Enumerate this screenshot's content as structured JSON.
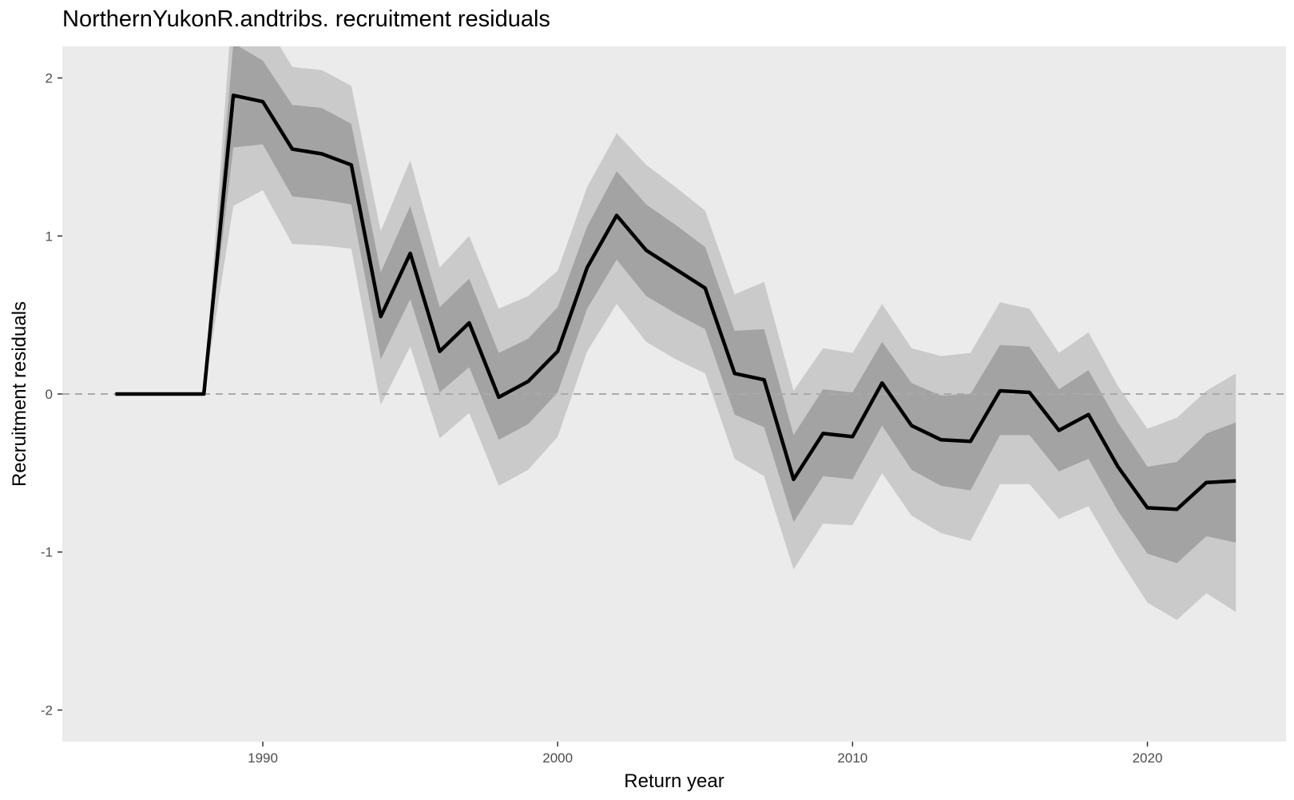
{
  "chart_data": {
    "type": "area",
    "title": "NorthernYukonR.andtribs. recruitment residuals",
    "xlabel": "Return year",
    "ylabel": "Recruitment residuals",
    "xlim": [
      1983.2,
      2024.7
    ],
    "ylim": [
      -2.2,
      2.2
    ],
    "x_ticks": [
      1990,
      2000,
      2010,
      2020
    ],
    "y_ticks": [
      -2,
      -1,
      0,
      1,
      2
    ],
    "reference_line": {
      "y": 0,
      "style": "dashed"
    },
    "grid": false,
    "colors": {
      "panel": "#ebebeb",
      "outer_band": "#cacaca",
      "inner_band": "#a3a3a3",
      "median_line": "#000000",
      "reference_line": "#aaaaaa"
    },
    "series": [
      {
        "x": [
          1985,
          1986,
          1987,
          1988,
          1989,
          1990,
          1991,
          1992,
          1993,
          1994,
          1995,
          1996,
          1997,
          1998,
          1999,
          2000,
          2001,
          2002,
          2003,
          2004,
          2005,
          2006,
          2007,
          2008,
          2009,
          2010,
          2011,
          2012,
          2013,
          2014,
          2015,
          2016,
          2017,
          2018,
          2019,
          2020,
          2021,
          2022,
          2023
        ],
        "median": [
          0,
          0,
          0,
          0,
          1.89,
          1.85,
          1.55,
          1.52,
          1.45,
          0.49,
          0.89,
          0.27,
          0.45,
          -0.02,
          0.08,
          0.27,
          0.8,
          1.13,
          0.91,
          0.79,
          0.67,
          0.13,
          0.09,
          -0.54,
          -0.25,
          -0.27,
          0.07,
          -0.2,
          -0.29,
          -0.3,
          0.02,
          0.01,
          -0.23,
          -0.13,
          -0.46,
          -0.72,
          -0.73,
          -0.56,
          -0.55
        ],
        "inner_low": [
          0,
          0,
          0,
          0,
          1.56,
          1.58,
          1.25,
          1.23,
          1.2,
          0.22,
          0.6,
          0.01,
          0.17,
          -0.29,
          -0.19,
          0.01,
          0.54,
          0.85,
          0.62,
          0.51,
          0.41,
          -0.13,
          -0.21,
          -0.81,
          -0.52,
          -0.54,
          -0.2,
          -0.48,
          -0.58,
          -0.61,
          -0.26,
          -0.26,
          -0.49,
          -0.41,
          -0.74,
          -1.01,
          -1.07,
          -0.9,
          -0.94
        ],
        "inner_high": [
          0,
          0,
          0,
          0,
          2.22,
          2.11,
          1.83,
          1.81,
          1.71,
          0.77,
          1.19,
          0.55,
          0.73,
          0.26,
          0.35,
          0.55,
          1.06,
          1.41,
          1.2,
          1.07,
          0.93,
          0.4,
          0.41,
          -0.26,
          0.03,
          0.01,
          0.33,
          0.07,
          -0.01,
          0.0,
          0.31,
          0.3,
          0.03,
          0.15,
          -0.18,
          -0.46,
          -0.43,
          -0.25,
          -0.18
        ],
        "outer_low": [
          0,
          0,
          0,
          0,
          1.19,
          1.29,
          0.95,
          0.94,
          0.92,
          -0.07,
          0.3,
          -0.28,
          -0.12,
          -0.58,
          -0.48,
          -0.27,
          0.27,
          0.57,
          0.33,
          0.22,
          0.13,
          -0.41,
          -0.52,
          -1.11,
          -0.82,
          -0.83,
          -0.5,
          -0.77,
          -0.88,
          -0.93,
          -0.57,
          -0.57,
          -0.79,
          -0.71,
          -1.03,
          -1.32,
          -1.43,
          -1.26,
          -1.38
        ],
        "outer_high": [
          0,
          0,
          0,
          0,
          2.55,
          2.38,
          2.07,
          2.05,
          1.95,
          1.03,
          1.48,
          0.8,
          1.0,
          0.54,
          0.62,
          0.78,
          1.31,
          1.65,
          1.45,
          1.31,
          1.16,
          0.63,
          0.71,
          0.02,
          0.29,
          0.26,
          0.57,
          0.29,
          0.24,
          0.26,
          0.58,
          0.54,
          0.26,
          0.39,
          0.05,
          -0.22,
          -0.15,
          0.02,
          0.13
        ]
      }
    ]
  }
}
